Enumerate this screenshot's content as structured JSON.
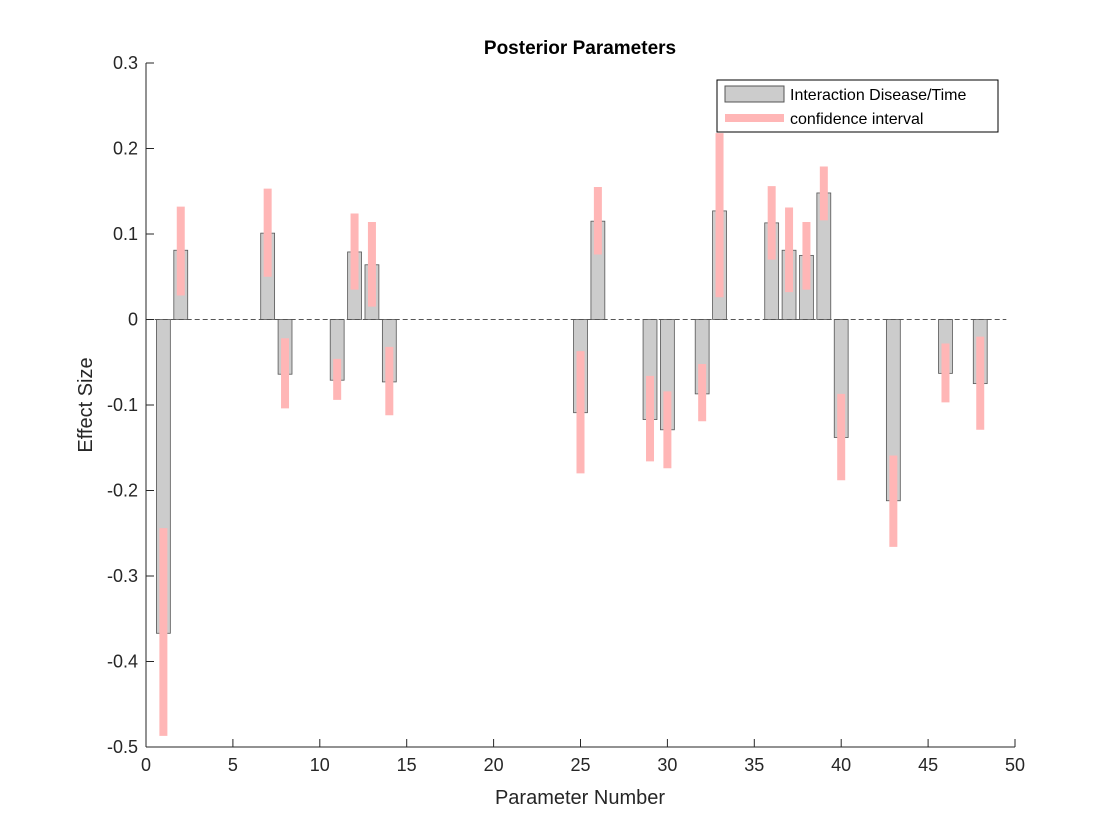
{
  "chart_data": {
    "type": "bar",
    "title": "Posterior Parameters",
    "xlabel": "Parameter Number",
    "ylabel": "Effect Size",
    "xlim": [
      0,
      50
    ],
    "ylim": [
      -0.5,
      0.3
    ],
    "xticks": [
      0,
      5,
      10,
      15,
      20,
      25,
      30,
      35,
      40,
      45,
      50
    ],
    "yticks": [
      -0.5,
      -0.4,
      -0.3,
      -0.2,
      -0.1,
      0,
      0.1,
      0.2,
      0.3
    ],
    "ytick_labels": [
      "-0.5",
      "-0.4",
      "-0.3",
      "-0.2",
      "-0.1",
      "0",
      "0.1",
      "0.2",
      "0.3"
    ],
    "grid": false,
    "legend_position": "top-right",
    "colors": {
      "bar_fill": "#cccccc",
      "bar_edge": "#555555",
      "interval": "#ffb6b6"
    },
    "series": [
      {
        "name": "Interaction Disease/Time",
        "x": [
          1,
          2,
          7,
          8,
          11,
          12,
          13,
          14,
          25,
          26,
          29,
          30,
          32,
          33,
          36,
          37,
          38,
          39,
          40,
          43,
          46,
          48
        ],
        "values": [
          -0.367,
          0.081,
          0.101,
          -0.064,
          -0.071,
          0.079,
          0.064,
          -0.073,
          -0.109,
          0.115,
          -0.117,
          -0.129,
          -0.087,
          0.127,
          0.113,
          0.081,
          0.075,
          0.148,
          -0.138,
          -0.212,
          -0.063,
          -0.075
        ]
      },
      {
        "name": "confidence interval",
        "x": [
          1,
          2,
          7,
          8,
          11,
          12,
          13,
          14,
          25,
          26,
          29,
          30,
          32,
          33,
          36,
          37,
          38,
          39,
          40,
          43,
          46,
          48
        ],
        "lower": [
          -0.487,
          0.028,
          0.05,
          -0.104,
          -0.094,
          0.035,
          0.015,
          -0.112,
          -0.18,
          0.076,
          -0.166,
          -0.174,
          -0.119,
          0.026,
          0.07,
          0.032,
          0.035,
          0.116,
          -0.188,
          -0.266,
          -0.097,
          -0.129
        ],
        "upper": [
          -0.244,
          0.132,
          0.153,
          -0.022,
          -0.046,
          0.124,
          0.114,
          -0.032,
          -0.037,
          0.155,
          -0.066,
          -0.084,
          -0.052,
          0.218,
          0.156,
          0.131,
          0.114,
          0.179,
          -0.087,
          -0.159,
          -0.028,
          -0.02
        ]
      }
    ]
  }
}
